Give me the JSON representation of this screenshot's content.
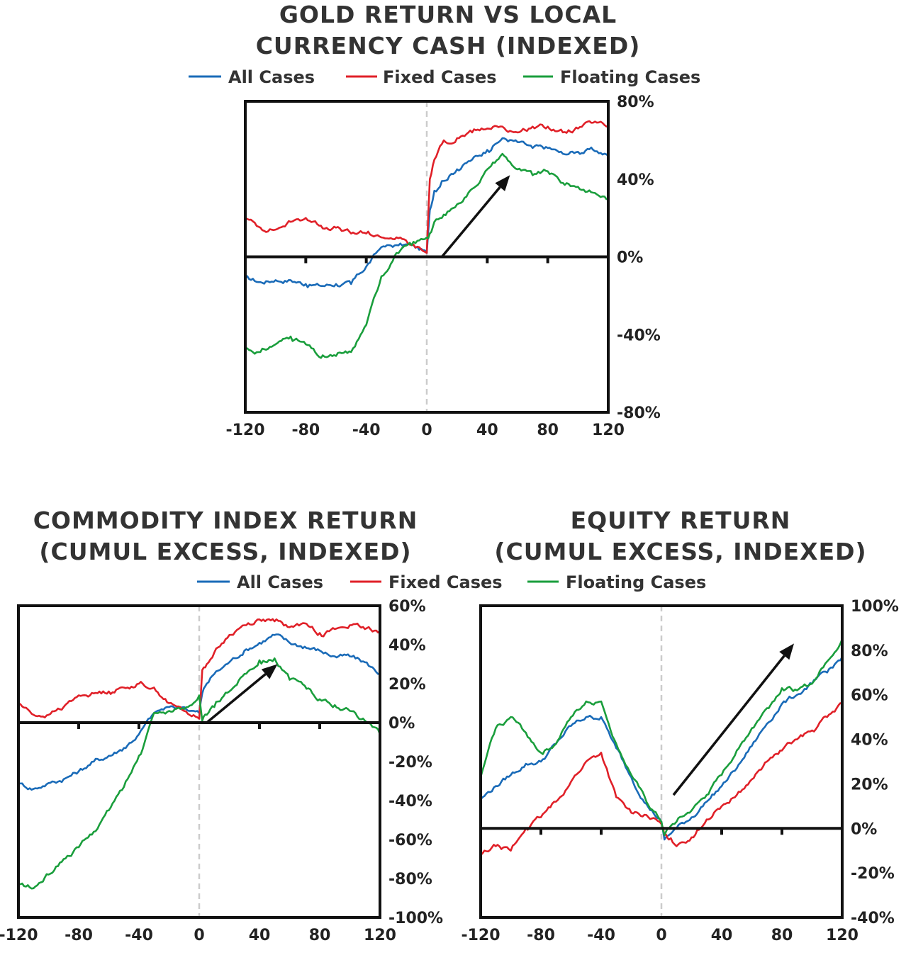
{
  "colors": {
    "all": "#1a6bb8",
    "fixed": "#e02028",
    "floating": "#1a9e3c",
    "axis": "#111111",
    "zero_guide": "#cccccc",
    "arrow": "#111111"
  },
  "legends": [
    {
      "all": "All Cases",
      "fixed": "Fixed Cases",
      "floating": "Floating Cases"
    },
    {
      "all": "All Cases",
      "fixed": "Fixed Cases",
      "floating": "Floating Cases"
    }
  ],
  "chart_data": [
    {
      "type": "line",
      "title": [
        "GOLD RETURN VS LOCAL",
        "CURRENCY CASH (INDEXED)"
      ],
      "xlim": [
        -120,
        120
      ],
      "ylim": [
        -0.8,
        0.8
      ],
      "x_ticks": [
        -120,
        -80,
        -40,
        0,
        40,
        80,
        120
      ],
      "x_tick_labels": [
        "-120",
        "-80",
        "-40",
        "0",
        "40",
        "80",
        "120"
      ],
      "y_ticks": [
        -0.8,
        -0.4,
        0,
        0.4,
        0.8
      ],
      "y_tick_labels": [
        "-80%",
        "-40%",
        "0%",
        "40%",
        "80%"
      ],
      "y_axis_side": "right",
      "arrow": {
        "from": [
          10,
          0.0
        ],
        "to": [
          55,
          0.42
        ]
      },
      "series": [
        {
          "key": "all",
          "name": "All Cases",
          "x": [
            -120,
            -110,
            -100,
            -90,
            -80,
            -70,
            -60,
            -50,
            -40,
            -30,
            -20,
            -10,
            0,
            2,
            5,
            10,
            20,
            30,
            40,
            50,
            60,
            70,
            80,
            90,
            100,
            110,
            120
          ],
          "y": [
            -0.11,
            -0.13,
            -0.12,
            -0.12,
            -0.14,
            -0.15,
            -0.14,
            -0.14,
            -0.05,
            0.05,
            0.06,
            0.06,
            0.02,
            0.24,
            0.34,
            0.39,
            0.45,
            0.5,
            0.55,
            0.61,
            0.59,
            0.56,
            0.56,
            0.53,
            0.54,
            0.55,
            0.52
          ]
        },
        {
          "key": "fixed",
          "name": "Fixed Cases",
          "x": [
            -120,
            -110,
            -100,
            -90,
            -80,
            -70,
            -60,
            -50,
            -40,
            -30,
            -20,
            -10,
            0,
            2,
            5,
            10,
            20,
            30,
            40,
            50,
            60,
            70,
            80,
            90,
            100,
            110,
            120
          ],
          "y": [
            0.2,
            0.15,
            0.14,
            0.18,
            0.2,
            0.16,
            0.15,
            0.12,
            0.12,
            0.1,
            0.1,
            0.06,
            0.02,
            0.4,
            0.5,
            0.58,
            0.61,
            0.64,
            0.66,
            0.67,
            0.64,
            0.67,
            0.67,
            0.64,
            0.66,
            0.69,
            0.67
          ]
        },
        {
          "key": "floating",
          "name": "Floating Cases",
          "x": [
            -120,
            -110,
            -100,
            -90,
            -80,
            -70,
            -60,
            -50,
            -40,
            -30,
            -20,
            -10,
            0,
            2,
            5,
            10,
            20,
            30,
            40,
            50,
            60,
            70,
            80,
            90,
            100,
            110,
            120
          ],
          "y": [
            -0.47,
            -0.49,
            -0.45,
            -0.41,
            -0.45,
            -0.52,
            -0.51,
            -0.49,
            -0.35,
            -0.1,
            0.02,
            0.06,
            0.1,
            0.12,
            0.18,
            0.2,
            0.27,
            0.35,
            0.45,
            0.53,
            0.45,
            0.42,
            0.44,
            0.38,
            0.36,
            0.33,
            0.3
          ]
        }
      ]
    },
    {
      "type": "line",
      "title": [
        "COMMODITY INDEX RETURN",
        "(CUMUL EXCESS, INDEXED)"
      ],
      "xlim": [
        -120,
        120
      ],
      "ylim": [
        -1.0,
        0.6
      ],
      "x_ticks": [
        -120,
        -80,
        -40,
        0,
        40,
        80,
        120
      ],
      "x_tick_labels": [
        "-120",
        "-80",
        "-40",
        "0",
        "40",
        "80",
        "120"
      ],
      "y_ticks": [
        -1.0,
        -0.8,
        -0.6,
        -0.4,
        -0.2,
        0,
        0.2,
        0.4,
        0.6
      ],
      "y_tick_labels": [
        "-100%",
        "-80%",
        "-60%",
        "-40%",
        "-20%",
        "0%",
        "20%",
        "40%",
        "60%"
      ],
      "y_axis_side": "right",
      "arrow": {
        "from": [
          5,
          0.0
        ],
        "to": [
          52,
          0.3
        ]
      },
      "series": [
        {
          "key": "all",
          "name": "All Cases",
          "x": [
            -120,
            -110,
            -100,
            -90,
            -80,
            -70,
            -60,
            -50,
            -40,
            -30,
            -20,
            -10,
            0,
            2,
            5,
            10,
            20,
            30,
            40,
            50,
            60,
            70,
            80,
            90,
            100,
            110,
            120
          ],
          "y": [
            -0.31,
            -0.34,
            -0.31,
            -0.29,
            -0.25,
            -0.2,
            -0.17,
            -0.13,
            -0.06,
            0.05,
            0.08,
            0.08,
            0.05,
            0.15,
            0.2,
            0.25,
            0.31,
            0.37,
            0.41,
            0.45,
            0.41,
            0.39,
            0.37,
            0.34,
            0.34,
            0.31,
            0.25
          ]
        },
        {
          "key": "fixed",
          "name": "Fixed Cases",
          "x": [
            -120,
            -110,
            -100,
            -90,
            -80,
            -70,
            -60,
            -50,
            -40,
            -30,
            -20,
            -10,
            0,
            2,
            5,
            10,
            20,
            30,
            40,
            50,
            60,
            70,
            80,
            90,
            100,
            110,
            120
          ],
          "y": [
            0.1,
            0.04,
            0.04,
            0.08,
            0.14,
            0.15,
            0.16,
            0.18,
            0.2,
            0.18,
            0.1,
            0.06,
            0.02,
            0.27,
            0.3,
            0.36,
            0.45,
            0.5,
            0.53,
            0.52,
            0.49,
            0.51,
            0.46,
            0.48,
            0.5,
            0.48,
            0.47
          ]
        },
        {
          "key": "floating",
          "name": "Floating Cases",
          "x": [
            -120,
            -110,
            -100,
            -90,
            -80,
            -70,
            -60,
            -50,
            -40,
            -30,
            -20,
            -10,
            0,
            2,
            5,
            10,
            20,
            30,
            40,
            50,
            60,
            70,
            80,
            90,
            100,
            110,
            120
          ],
          "y": [
            -0.83,
            -0.85,
            -0.78,
            -0.7,
            -0.64,
            -0.56,
            -0.45,
            -0.33,
            -0.17,
            0.05,
            0.06,
            0.07,
            0.14,
            0.01,
            0.04,
            0.08,
            0.16,
            0.25,
            0.32,
            0.33,
            0.22,
            0.19,
            0.12,
            0.09,
            0.06,
            0.01,
            -0.06
          ]
        }
      ]
    },
    {
      "type": "line",
      "title": [
        "EQUITY RETURN",
        "(CUMUL EXCESS, INDEXED)"
      ],
      "xlim": [
        -120,
        120
      ],
      "ylim": [
        -0.4,
        1.0
      ],
      "x_ticks": [
        -120,
        -80,
        -40,
        0,
        40,
        80,
        120
      ],
      "x_tick_labels": [
        "-120",
        "-80",
        "-40",
        "0",
        "40",
        "80",
        "120"
      ],
      "y_ticks": [
        -0.4,
        -0.2,
        0,
        0.2,
        0.4,
        0.6,
        0.8,
        1.0
      ],
      "y_tick_labels": [
        "-40%",
        "-20%",
        "0%",
        "20%",
        "40%",
        "60%",
        "80%",
        "100%"
      ],
      "y_axis_side": "right",
      "arrow": {
        "from": [
          8,
          0.15
        ],
        "to": [
          88,
          0.83
        ]
      },
      "series": [
        {
          "key": "all",
          "name": "All Cases",
          "x": [
            -120,
            -110,
            -100,
            -90,
            -80,
            -70,
            -60,
            -50,
            -40,
            -30,
            -20,
            -10,
            0,
            2,
            5,
            10,
            20,
            30,
            40,
            50,
            60,
            70,
            80,
            90,
            100,
            110,
            120
          ],
          "y": [
            0.13,
            0.19,
            0.24,
            0.29,
            0.3,
            0.38,
            0.46,
            0.5,
            0.5,
            0.36,
            0.23,
            0.11,
            0.03,
            -0.05,
            -0.03,
            0.0,
            0.05,
            0.12,
            0.19,
            0.27,
            0.37,
            0.47,
            0.56,
            0.6,
            0.65,
            0.7,
            0.77
          ]
        },
        {
          "key": "fixed",
          "name": "Fixed Cases",
          "x": [
            -120,
            -110,
            -100,
            -90,
            -80,
            -70,
            -60,
            -50,
            -40,
            -30,
            -20,
            -10,
            0,
            2,
            5,
            10,
            20,
            30,
            40,
            50,
            60,
            70,
            80,
            90,
            100,
            110,
            120
          ],
          "y": [
            -0.12,
            -0.08,
            -0.1,
            0.0,
            0.05,
            0.12,
            0.21,
            0.3,
            0.34,
            0.14,
            0.07,
            0.06,
            0.02,
            -0.03,
            -0.05,
            -0.08,
            -0.04,
            0.04,
            0.1,
            0.15,
            0.22,
            0.3,
            0.35,
            0.4,
            0.44,
            0.5,
            0.56
          ]
        },
        {
          "key": "floating",
          "name": "Floating Cases",
          "x": [
            -120,
            -110,
            -100,
            -90,
            -80,
            -70,
            -60,
            -50,
            -40,
            -30,
            -20,
            -10,
            0,
            2,
            5,
            10,
            20,
            30,
            40,
            50,
            60,
            70,
            80,
            90,
            100,
            110,
            120
          ],
          "y": [
            0.23,
            0.45,
            0.5,
            0.43,
            0.34,
            0.38,
            0.5,
            0.57,
            0.57,
            0.38,
            0.24,
            0.12,
            0.03,
            -0.03,
            0.0,
            0.03,
            0.08,
            0.15,
            0.24,
            0.35,
            0.45,
            0.54,
            0.63,
            0.62,
            0.65,
            0.75,
            0.85
          ]
        }
      ]
    }
  ]
}
